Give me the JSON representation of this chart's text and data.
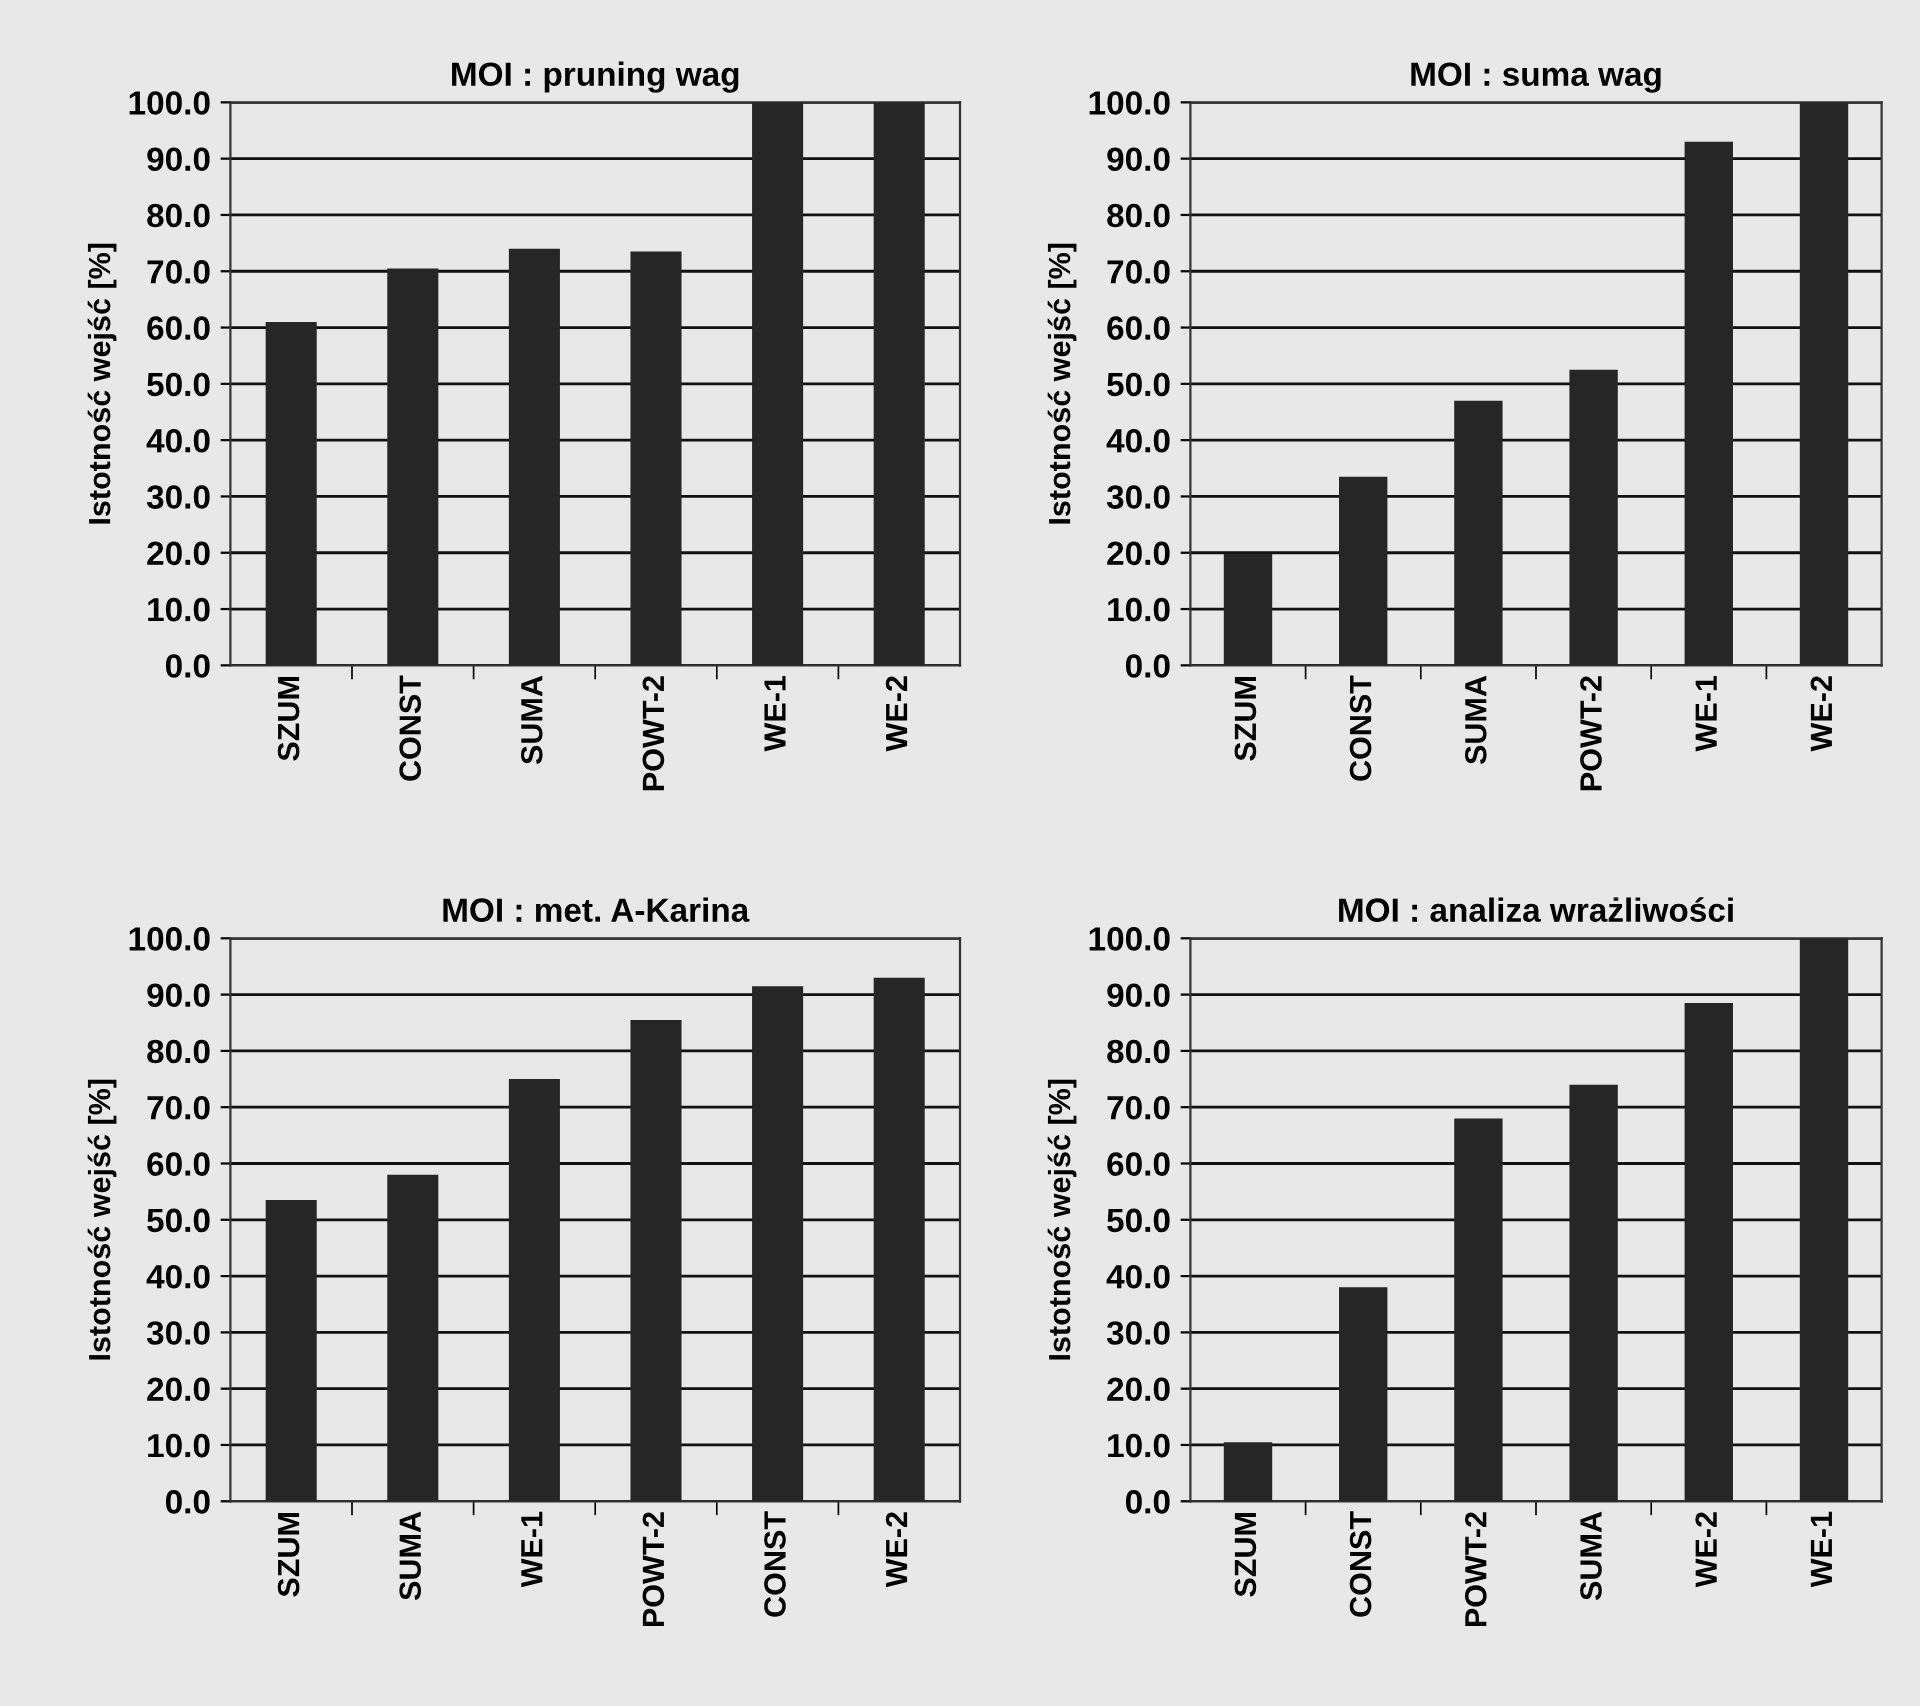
{
  "chart_data": [
    {
      "type": "bar",
      "title": "MOI : pruning wag",
      "ylabel": "Istotność wejść [%]",
      "categories": [
        "SZUM",
        "CONST",
        "SUMA",
        "POWT-2",
        "WE-1",
        "WE-2"
      ],
      "color": "#262626",
      "values": [
        61,
        70.5,
        74,
        73.5,
        100,
        100
      ],
      "ylim": [
        0,
        100
      ],
      "yticks": [
        {
          "value": 0,
          "label": "0.0"
        },
        {
          "value": 10,
          "label": "10.0"
        },
        {
          "value": 20,
          "label": "20.0"
        },
        {
          "value": 30,
          "label": "30.0"
        },
        {
          "value": 40,
          "label": "40.0"
        },
        {
          "value": 50,
          "label": "50.0"
        },
        {
          "value": 60,
          "label": "60.0"
        },
        {
          "value": 70,
          "label": "70.0"
        },
        {
          "value": 80,
          "label": "80.0"
        },
        {
          "value": 90,
          "label": "90.0"
        },
        {
          "value": 100,
          "label": "100.0"
        }
      ],
      "grid": "y",
      "legend": false
    },
    {
      "type": "bar",
      "title": "MOI : suma wag",
      "ylabel": "Istotność wejść [%]",
      "categories": [
        "SZUM",
        "CONST",
        "SUMA",
        "POWT-2",
        "WE-1",
        "WE-2"
      ],
      "color": "#262626",
      "values": [
        19.8,
        33.5,
        47,
        52.5,
        93,
        100
      ],
      "ylim": [
        0,
        100
      ],
      "yticks": [
        {
          "value": 0,
          "label": "0.0"
        },
        {
          "value": 10,
          "label": "10.0"
        },
        {
          "value": 20,
          "label": "20.0"
        },
        {
          "value": 30,
          "label": "30.0"
        },
        {
          "value": 40,
          "label": "40.0"
        },
        {
          "value": 50,
          "label": "50.0"
        },
        {
          "value": 60,
          "label": "60.0"
        },
        {
          "value": 70,
          "label": "70.0"
        },
        {
          "value": 80,
          "label": "80.0"
        },
        {
          "value": 90,
          "label": "90.0"
        },
        {
          "value": 100,
          "label": "100.0"
        }
      ],
      "grid": "y",
      "legend": false
    },
    {
      "type": "bar",
      "title": "MOI : met. A-Karina",
      "ylabel": "Istotność wejść [%]",
      "categories": [
        "SZUM",
        "SUMA",
        "WE-1",
        "POWT-2",
        "CONST",
        "WE-2"
      ],
      "color": "#262626",
      "values": [
        53.5,
        58,
        75,
        85.5,
        91.5,
        93
      ],
      "ylim": [
        0,
        100
      ],
      "yticks": [
        {
          "value": 0,
          "label": "0.0"
        },
        {
          "value": 10,
          "label": "10.0"
        },
        {
          "value": 20,
          "label": "20.0"
        },
        {
          "value": 30,
          "label": "30.0"
        },
        {
          "value": 40,
          "label": "40.0"
        },
        {
          "value": 50,
          "label": "50.0"
        },
        {
          "value": 60,
          "label": "60.0"
        },
        {
          "value": 70,
          "label": "70.0"
        },
        {
          "value": 80,
          "label": "80.0"
        },
        {
          "value": 90,
          "label": "90.0"
        },
        {
          "value": 100,
          "label": "100.0"
        }
      ],
      "grid": "y",
      "legend": false
    },
    {
      "type": "bar",
      "title": "MOI : analiza wrażliwości",
      "ylabel": "Istotność wejść [%]",
      "categories": [
        "SZUM",
        "CONST",
        "POWT-2",
        "SUMA",
        "WE-2",
        "WE-1"
      ],
      "color": "#262626",
      "values": [
        10.5,
        38,
        68,
        74,
        88.5,
        100
      ],
      "ylim": [
        0,
        100
      ],
      "yticks": [
        {
          "value": 0,
          "label": "0.0"
        },
        {
          "value": 10,
          "label": "10.0"
        },
        {
          "value": 20,
          "label": "20.0"
        },
        {
          "value": 30,
          "label": "30.0"
        },
        {
          "value": 40,
          "label": "40.0"
        },
        {
          "value": 50,
          "label": "50.0"
        },
        {
          "value": 60,
          "label": "60.0"
        },
        {
          "value": 70,
          "label": "70.0"
        },
        {
          "value": 80,
          "label": "80.0"
        },
        {
          "value": 90,
          "label": "90.0"
        },
        {
          "value": 100,
          "label": "100.0"
        }
      ],
      "grid": "y",
      "legend": false
    }
  ]
}
